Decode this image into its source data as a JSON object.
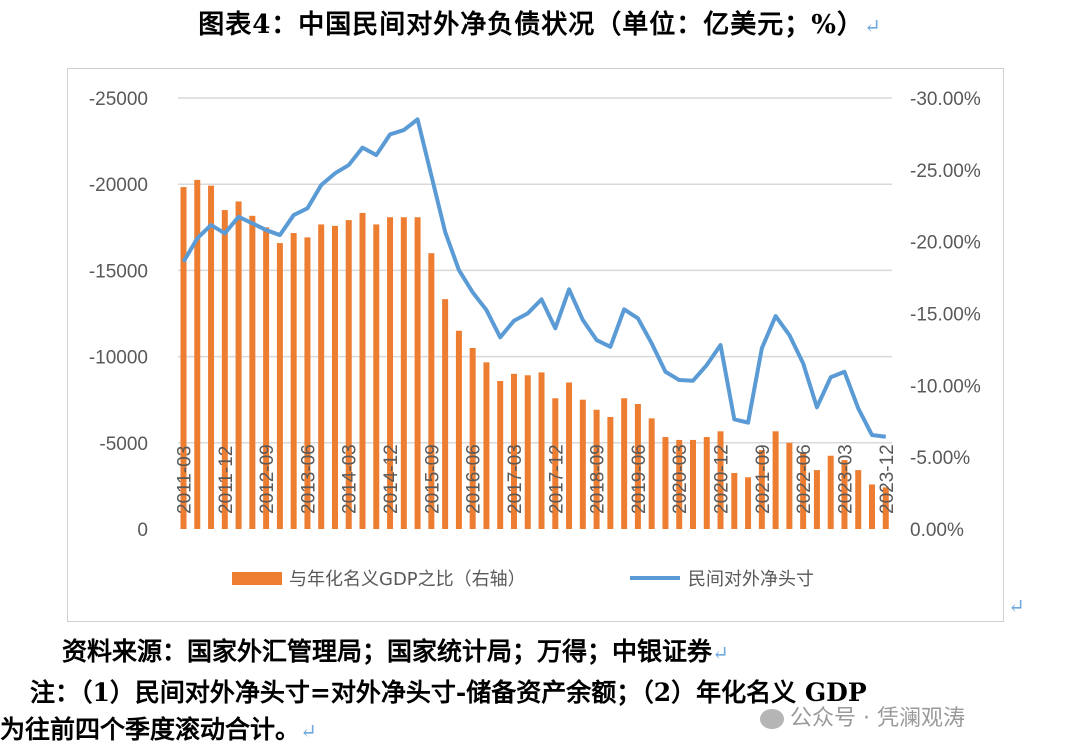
{
  "title": "图表4：中国民间对外净负债状况（单位：亿美元；%）",
  "return_mark": "↵",
  "source": "资料来源：国家外汇管理局；国家统计局；万得；中银证券",
  "note_line1": "注：（1）民间对外净头寸=对外净头寸-储备资产余额；（2）年化名义 GDP",
  "note_line2": "为往前四个季度滚动合计。",
  "watermark": "公众号 · 凭澜观涛",
  "colors": {
    "bar": "#ED7D31",
    "line": "#5B9BD5",
    "grid": "#d9d9d9"
  },
  "chart_data": {
    "type": "bar+line",
    "title": "",
    "legend_position": "bottom",
    "grid": true,
    "left_axis": {
      "ylim": [
        -25000,
        0
      ],
      "ticks": [
        "-25000",
        "-20000",
        "-15000",
        "-10000",
        "-5000",
        "0"
      ]
    },
    "right_axis": {
      "ylim": [
        -30,
        0
      ],
      "ticks": [
        "-30.00%",
        "-25.00%",
        "-20.00%",
        "-15.00%",
        "-10.00%",
        "-5.00%",
        "0.00%"
      ]
    },
    "x_tick_labels": [
      "2011-03",
      "2011-12",
      "2012-09",
      "2013-06",
      "2014-03",
      "2014-12",
      "2015-09",
      "2016-06",
      "2017-03",
      "2017-12",
      "2018-09",
      "2019-06",
      "2020-03",
      "2020-12",
      "2021-09",
      "2022-06",
      "2023-03",
      "2023-12"
    ],
    "quarters": [
      "2011-03",
      "2011-06",
      "2011-09",
      "2011-12",
      "2012-03",
      "2012-06",
      "2012-09",
      "2012-12",
      "2013-03",
      "2013-06",
      "2013-09",
      "2013-12",
      "2014-03",
      "2014-06",
      "2014-09",
      "2014-12",
      "2015-03",
      "2015-06",
      "2015-09",
      "2015-12",
      "2016-03",
      "2016-06",
      "2016-09",
      "2016-12",
      "2017-03",
      "2017-06",
      "2017-09",
      "2017-12",
      "2018-03",
      "2018-06",
      "2018-09",
      "2018-12",
      "2019-03",
      "2019-06",
      "2019-09",
      "2019-12",
      "2020-03",
      "2020-06",
      "2020-09",
      "2020-12",
      "2021-03",
      "2021-06",
      "2021-09",
      "2021-12",
      "2022-03",
      "2022-06",
      "2022-09",
      "2022-12",
      "2023-03",
      "2023-06",
      "2023-09",
      "2023-12"
    ],
    "series": [
      {
        "name": "与年化名义GDP之比（右轴）",
        "type": "bar",
        "axis": "right",
        "unit": "%",
        "values": [
          -23.8,
          -24.3,
          -23.9,
          -22.2,
          -22.8,
          -21.8,
          -21.0,
          -19.9,
          -20.6,
          -20.3,
          -21.2,
          -21.1,
          -21.5,
          -22.0,
          -21.2,
          -21.7,
          -21.7,
          -21.7,
          -19.2,
          -16.0,
          -13.8,
          -12.6,
          -11.6,
          -10.3,
          -10.8,
          -10.7,
          -10.9,
          -9.1,
          -10.2,
          -9.0,
          -8.3,
          -7.8,
          -9.1,
          -8.7,
          -7.7,
          -6.4,
          -6.2,
          -6.2,
          -6.4,
          -6.8,
          -3.9,
          -3.6,
          -5.5,
          -6.8,
          -6.0,
          -5.3,
          -4.1,
          -5.1,
          -4.8,
          -4.1,
          -3.1,
          -2.9
        ]
      },
      {
        "name": "民间对外净头寸",
        "type": "line",
        "axis": "left",
        "unit": "亿美元",
        "values": [
          -15500,
          -16860,
          -17630,
          -17150,
          -18110,
          -17730,
          -17340,
          -17050,
          -18210,
          -18600,
          -19950,
          -20630,
          -21110,
          -22120,
          -21690,
          -22890,
          -23140,
          -23760,
          -20500,
          -17240,
          -15020,
          -13730,
          -12700,
          -11120,
          -12080,
          -12510,
          -13320,
          -11640,
          -13900,
          -12120,
          -10960,
          -10570,
          -12740,
          -12220,
          -10770,
          -9120,
          -8640,
          -8600,
          -9510,
          -10670,
          -6360,
          -6170,
          -10480,
          -12350,
          -11250,
          -9610,
          -7060,
          -8800,
          -9120,
          -7000,
          -5450,
          -5350
        ]
      }
    ]
  }
}
